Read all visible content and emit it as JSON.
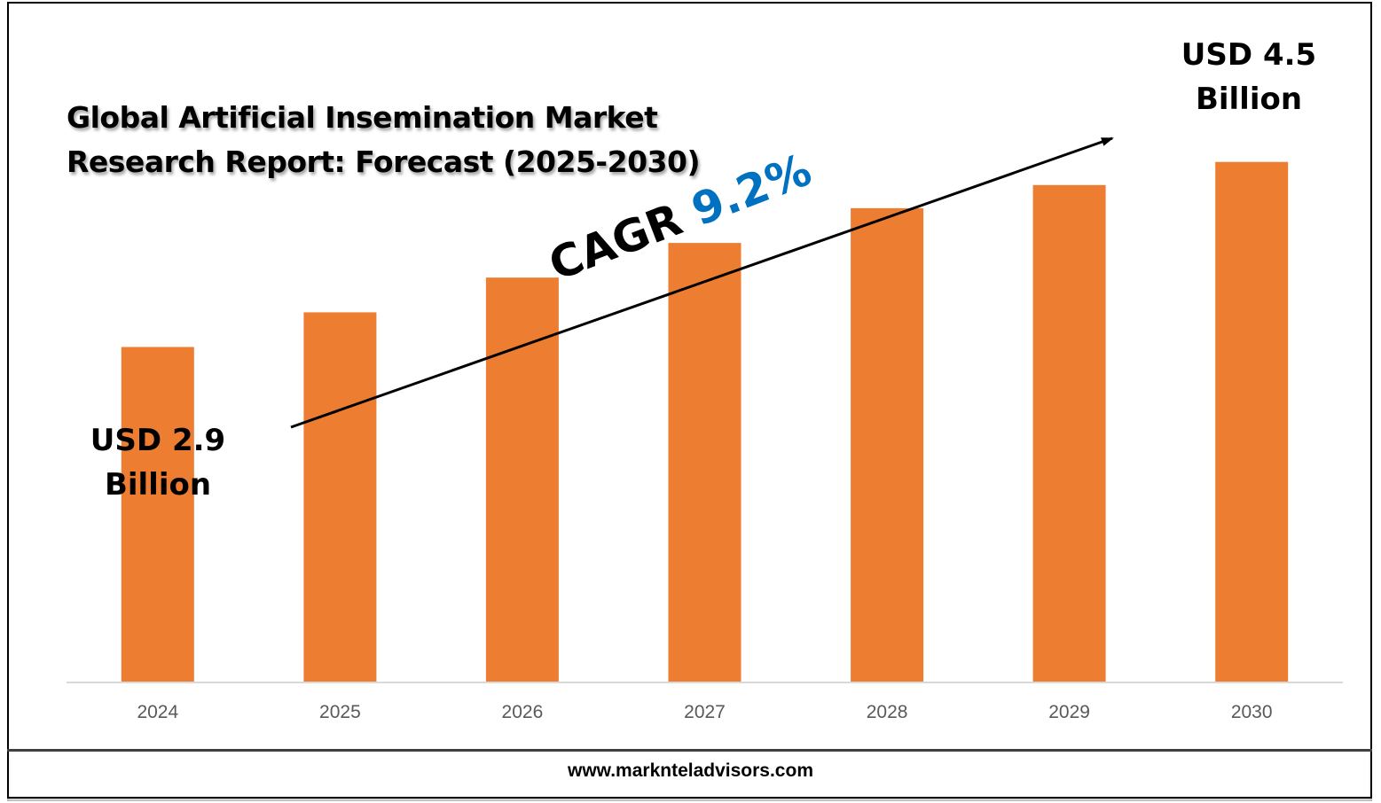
{
  "title_lines": [
    "Global Artificial Insemination Market",
    "Research Report: Forecast (2025-2030)"
  ],
  "start_label": [
    "USD 2.9",
    "Billion"
  ],
  "end_label": [
    "USD 4.5",
    "Billion"
  ],
  "cagr": {
    "prefix": "CAGR ",
    "value": "9.2%"
  },
  "footer": "www.marknteladvisors.com",
  "colors": {
    "bar": "#ed7d31",
    "cagr_value": "#0070c0",
    "axis": "#d9d9d9",
    "tick_text": "#595959"
  },
  "chart_data": {
    "type": "bar",
    "title": "Global Artificial Insemination Market Research Report: Forecast (2025-2030)",
    "categories": [
      "2024",
      "2025",
      "2026",
      "2027",
      "2028",
      "2029",
      "2030"
    ],
    "values": [
      2.9,
      3.2,
      3.5,
      3.8,
      4.1,
      4.3,
      4.5
    ],
    "ylabel": "",
    "xlabel": "",
    "unit": "USD Billion",
    "ylim": [
      0,
      5.9
    ],
    "grid": false,
    "legend": "none"
  }
}
